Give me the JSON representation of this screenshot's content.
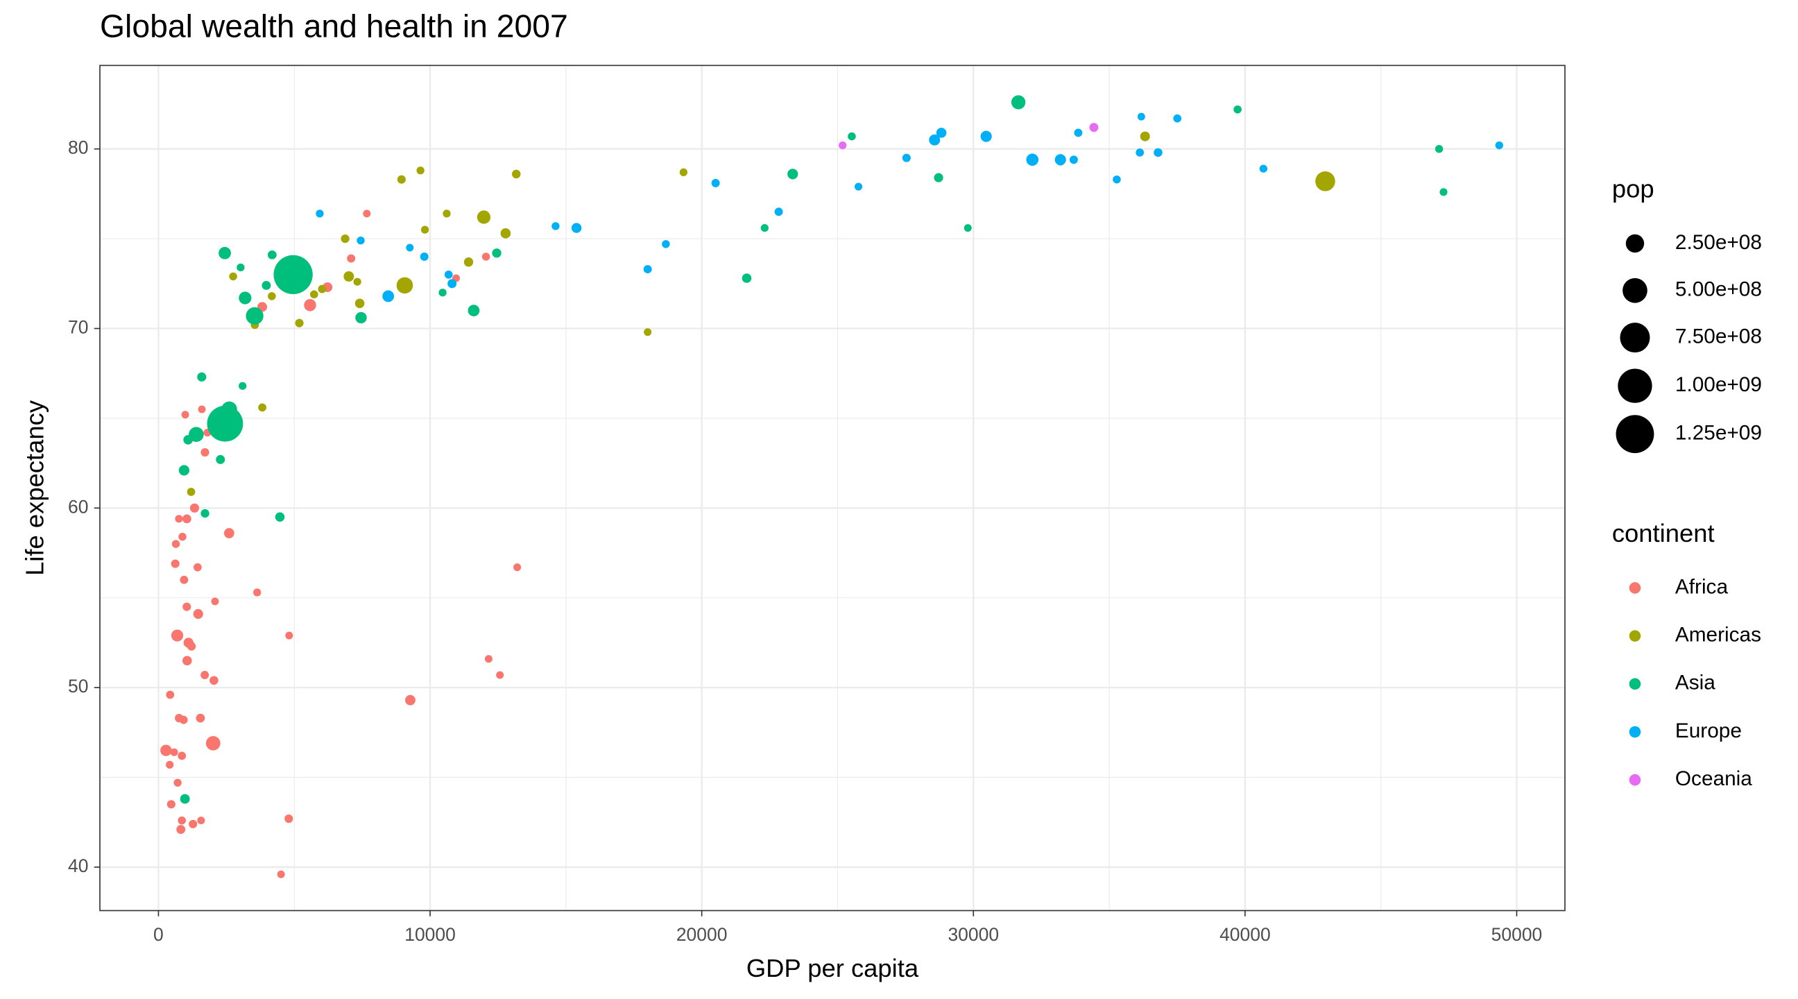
{
  "chart_data": {
    "type": "scatter",
    "title": "Global wealth and health in 2007",
    "x_label": "GDP per capita",
    "y_label": "Life expectancy",
    "xlim": [
      -2156,
      51775
    ],
    "ylim": [
      37.58,
      84.65
    ],
    "xticks": [
      0,
      10000,
      20000,
      30000,
      40000,
      50000
    ],
    "yticks": [
      40,
      50,
      60,
      70,
      80
    ],
    "x_minor_grid": [
      5000,
      15000,
      25000,
      35000,
      45000
    ],
    "y_minor_grid": [
      45,
      55,
      65,
      75
    ],
    "grid": true,
    "legend_position": "right",
    "size_legend": {
      "title": "pop",
      "values": [
        {
          "value": 250000000,
          "label": "2.50e+08"
        },
        {
          "value": 500000000,
          "label": "5.00e+08"
        },
        {
          "value": 750000000,
          "label": "7.50e+08"
        },
        {
          "value": 1000000000,
          "label": "1.00e+09"
        },
        {
          "value": 1250000000,
          "label": "1.25e+09"
        }
      ]
    },
    "color_legend_title": "continent",
    "series": [
      {
        "name": "Africa",
        "color": "#F8766D",
        "x": [
          6223,
          4797,
          1441,
          12570,
          1217,
          430,
          2042,
          706,
          1704,
          986,
          278,
          3633,
          1545,
          2082,
          5581,
          12154,
          641,
          691,
          13206,
          753,
          1328,
          943,
          579,
          1463,
          1569,
          415,
          12057,
          1045,
          759,
          1043,
          1803,
          10957,
          3820,
          824,
          4811,
          620,
          2014,
          7670,
          863,
          1598,
          1712,
          863,
          926,
          9270,
          2602,
          4513,
          1107,
          883,
          7093,
          1056,
          1271,
          470
        ],
        "y": [
          72.3,
          42.7,
          56.7,
          50.7,
          52.3,
          49.6,
          50.4,
          44.7,
          50.7,
          65.2,
          46.5,
          55.3,
          48.3,
          54.8,
          71.3,
          51.6,
          58.0,
          52.9,
          56.7,
          59.4,
          60.0,
          56.0,
          46.4,
          54.1,
          42.6,
          45.7,
          74.0,
          59.4,
          48.3,
          54.5,
          64.2,
          72.8,
          71.2,
          42.1,
          52.9,
          56.9,
          46.9,
          76.4,
          46.2,
          65.5,
          63.1,
          42.6,
          48.2,
          49.3,
          58.6,
          39.6,
          52.5,
          58.4,
          73.9,
          51.5,
          42.4,
          43.5
        ],
        "size": [
          33300000,
          12400000,
          8100000,
          1600000,
          14300000,
          8400000,
          17700000,
          4400000,
          10200000,
          700000,
          64600000,
          3800000,
          18000000,
          500000,
          80300000,
          550000,
          4900000,
          76500000,
          1450000,
          1700000,
          22900000,
          9900000,
          1500000,
          35600000,
          2000000,
          3200000,
          6000000,
          19200000,
          13300000,
          12000000,
          3300000,
          1250000,
          33800000,
          20000000,
          2100000,
          12900000,
          135000000,
          800000,
          8900000,
          200000,
          12300000,
          6100000,
          9100000,
          44000000,
          42300000,
          1100000,
          38100000,
          5700000,
          10300000,
          29200000,
          11700000,
          12300000
        ]
      },
      {
        "name": "Americas",
        "color": "#A3A500",
        "x": [
          12779,
          3822,
          9066,
          36319,
          13172,
          7007,
          9645,
          8948,
          6025,
          6873,
          5728,
          5186,
          1202,
          3548,
          7321,
          11977,
          2749,
          9809,
          4173,
          7409,
          19329,
          18009,
          42952,
          10611,
          11416
        ],
        "y": [
          75.3,
          65.6,
          72.4,
          80.7,
          78.6,
          72.9,
          78.8,
          78.3,
          72.2,
          75.0,
          71.9,
          70.3,
          60.9,
          70.2,
          72.6,
          76.2,
          72.9,
          75.5,
          71.8,
          71.4,
          78.7,
          69.8,
          78.2,
          76.4,
          73.7
        ],
        "size": [
          40300000,
          9100000,
          190000000,
          33400000,
          16300000,
          44200000,
          4100000,
          11400000,
          9300000,
          13800000,
          6900000,
          12600000,
          8500000,
          7500000,
          2800000,
          108700000,
          5700000,
          3200000,
          6700000,
          28700000,
          3900000,
          1100000,
          301000000,
          3400000,
          26100000
        ]
      },
      {
        "name": "Asia",
        "color": "#00BF7D",
        "x": [
          975,
          29796,
          1391,
          1714,
          4959,
          39725,
          2452,
          3541,
          11606,
          4471,
          25523,
          31656,
          4519,
          1593,
          23348,
          47307,
          10461,
          12452,
          3096,
          944,
          1091,
          22316,
          2606,
          3190,
          21655,
          47143,
          3970,
          4185,
          28718,
          7458,
          2442,
          3025,
          2281
        ],
        "y": [
          43.8,
          75.6,
          64.1,
          59.7,
          73.0,
          82.2,
          64.7,
          70.7,
          71.0,
          59.5,
          80.7,
          82.6,
          72.5,
          67.3,
          78.6,
          77.6,
          72.0,
          74.2,
          66.8,
          62.1,
          63.8,
          75.6,
          65.5,
          71.7,
          72.8,
          80.0,
          72.4,
          74.1,
          78.4,
          70.6,
          74.2,
          73.4,
          62.7
        ],
        "size": [
          31900000,
          700000,
          150000000,
          14100000,
          1318700000,
          6980000,
          1110000000,
          223500000,
          69500000,
          27500000,
          6400000,
          127500000,
          6100000,
          23300000,
          49000000,
          2500000,
          3900000,
          24800000,
          2900000,
          47800000,
          28900000,
          3200000,
          169000000,
          91100000,
          27600000,
          4550000,
          20400000,
          19300000,
          23200000,
          65100000,
          85300000,
          4000000,
          22200000
        ]
      },
      {
        "name": "Europe",
        "color": "#00B0F6",
        "x": [
          5937,
          36126,
          33693,
          7446,
          10681,
          14619,
          22833,
          35278,
          33207,
          30470,
          32170,
          27538,
          18009,
          36181,
          40676,
          28570,
          9254,
          36798,
          49357,
          15390,
          20510,
          10808,
          9787,
          18678,
          25768,
          28821,
          33860,
          37506,
          8458,
          33203
        ],
        "y": [
          76.4,
          79.8,
          79.4,
          74.9,
          73.0,
          75.7,
          76.5,
          78.3,
          79.3,
          80.7,
          79.4,
          79.5,
          73.3,
          81.8,
          78.9,
          80.5,
          74.5,
          79.8,
          80.2,
          75.6,
          78.1,
          72.5,
          74.0,
          74.7,
          77.9,
          80.9,
          80.9,
          81.7,
          71.8,
          79.4
        ],
        "size": [
          3600000,
          8200000,
          10400000,
          4600000,
          7300000,
          4500000,
          10200000,
          5500000,
          5200000,
          61100000,
          82400000,
          10700000,
          10000000,
          300000,
          4100000,
          58100000,
          700000,
          16600000,
          4600000,
          38500000,
          10600000,
          22300000,
          10200000,
          5400000,
          2000000,
          40400000,
          9000000,
          7600000,
          71200000,
          60800000
        ]
      },
      {
        "name": "Oceania",
        "color": "#E76BF3",
        "x": [
          34435,
          25185
        ],
        "y": [
          81.2,
          80.2
        ],
        "size": [
          20400000,
          4100000
        ]
      }
    ]
  }
}
